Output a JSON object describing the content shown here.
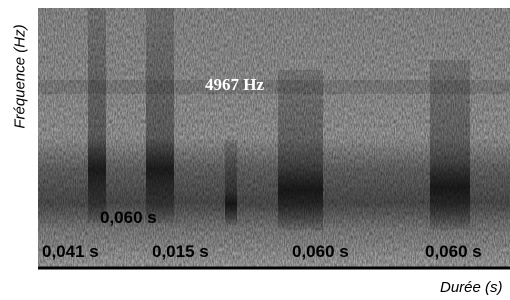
{
  "axes": {
    "y_label": "Fréquence (Hz)",
    "x_label": "Durée (s)"
  },
  "annotations": {
    "frequency": "4967  Hz",
    "durations": [
      "0,060 s",
      "0,041 s",
      "0,015 s",
      "0,060 s",
      "0,060 s"
    ]
  }
}
